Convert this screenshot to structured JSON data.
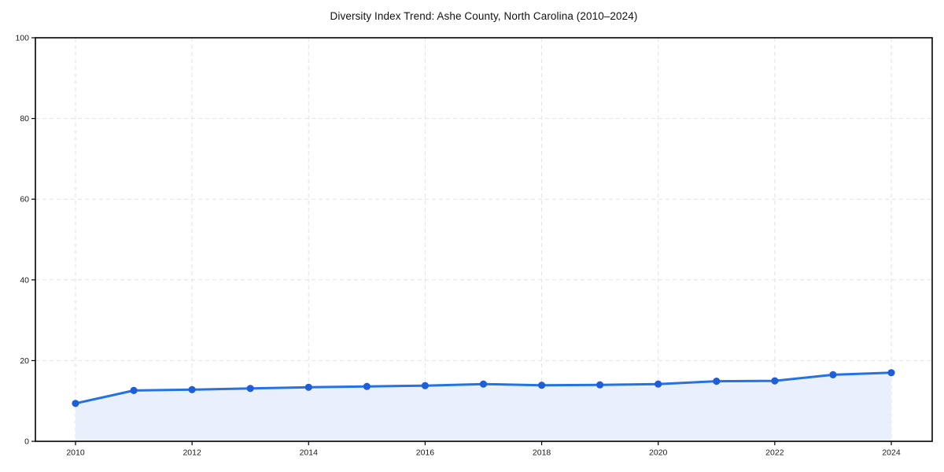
{
  "chart_data": {
    "type": "area",
    "title": "Diversity Index Trend: Ashe County, North Carolina (2010–2024)",
    "x": [
      2010,
      2011,
      2012,
      2013,
      2014,
      2015,
      2016,
      2017,
      2018,
      2019,
      2020,
      2021,
      2022,
      2023,
      2024
    ],
    "values": [
      9.4,
      12.6,
      12.8,
      13.1,
      13.4,
      13.6,
      13.8,
      14.2,
      13.9,
      14.0,
      14.2,
      14.9,
      15.0,
      16.5,
      17.0
    ],
    "xlabel": "",
    "ylabel": "",
    "ylim": [
      0,
      100
    ],
    "yticks": [
      0,
      20,
      40,
      60,
      80,
      100
    ],
    "ytick_labels": [
      "0",
      "20",
      "40",
      "60",
      "80",
      "100"
    ],
    "xticks": [
      2010,
      2012,
      2014,
      2016,
      2018,
      2020,
      2022,
      2024
    ],
    "xtick_labels": [
      "2010",
      "2012",
      "2014",
      "2016",
      "2018",
      "2020",
      "2022",
      "2024"
    ],
    "grid": true,
    "legend": "none",
    "colors": {
      "line": "#2472e4",
      "marker": "#1e5fd9",
      "fill": "#e9f0fc",
      "grid": "#e2e2e2",
      "axis": "#000000",
      "text": "#1a1a1a",
      "background": "#ffffff"
    }
  }
}
